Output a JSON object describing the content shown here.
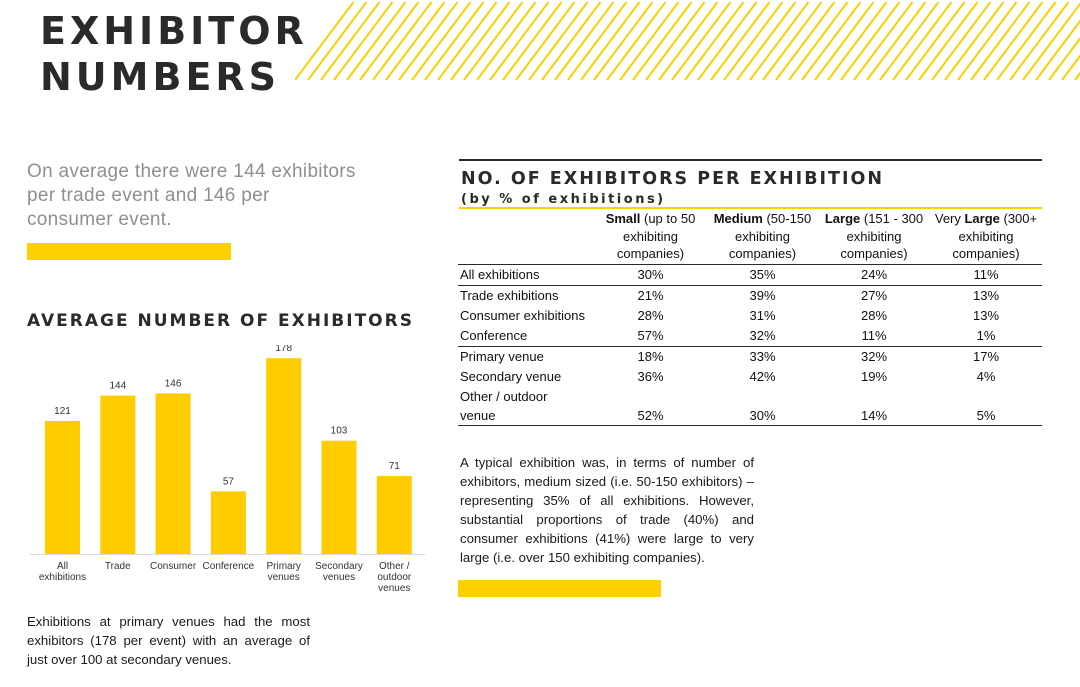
{
  "title": {
    "line1": "EXHIBITOR",
    "line2": "NUMBERS"
  },
  "intro": "On average there were 144 exhibitors per trade event and 146 per consumer event.",
  "colors": {
    "accent": "#ffd000",
    "text": "#2a2a2a",
    "intro_text": "#8f8f8f"
  },
  "chart_data": {
    "type": "bar",
    "title": "AVERAGE NUMBER OF EXHIBITORS",
    "categories": [
      [
        "All",
        "exhibitions"
      ],
      [
        "Trade"
      ],
      [
        "Consumer"
      ],
      [
        "Conference"
      ],
      [
        "Primary",
        "venues"
      ],
      [
        "Secondary",
        "venues"
      ],
      [
        "Other /",
        "outdoor",
        "venues"
      ]
    ],
    "values": [
      121,
      144,
      146,
      57,
      178,
      103,
      71
    ],
    "ylim": [
      0,
      190
    ],
    "xlabel": "",
    "ylabel": "",
    "grid": false,
    "color": "#ffcc00"
  },
  "bottom_note": "Exhibitions at primary venues had the most exhibitors (178 per event) with an average of just over 100 at secondary venues.",
  "table": {
    "heading": "NO. OF EXHIBITORS PER EXHIBITION",
    "subheading": "(by % of exhibitions)",
    "columns": [
      {
        "bold": "Small",
        "pre": "",
        "rest": " (up to 50 exhibiting companies)"
      },
      {
        "bold": "Medium",
        "pre": "",
        "rest": " (50-150 exhibiting companies)"
      },
      {
        "bold": "Large",
        "pre": "",
        "rest": " (151 - 300 exhibiting companies)"
      },
      {
        "bold": "Large",
        "pre": "Very ",
        "rest": " (300+ exhibiting companies)"
      }
    ],
    "rows": [
      {
        "label": "All exhibitions",
        "values": [
          "30%",
          "35%",
          "24%",
          "11%"
        ]
      },
      {
        "label": "Trade exhibitions",
        "values": [
          "21%",
          "39%",
          "27%",
          "13%"
        ]
      },
      {
        "label": "Consumer exhibitions",
        "values": [
          "28%",
          "31%",
          "28%",
          "13%"
        ]
      },
      {
        "label": "Conference",
        "values": [
          "57%",
          "32%",
          "11%",
          "1%"
        ]
      },
      {
        "label": "Primary venue",
        "values": [
          "18%",
          "33%",
          "32%",
          "17%"
        ]
      },
      {
        "label": "Secondary venue",
        "values": [
          "36%",
          "42%",
          "19%",
          "4%"
        ]
      },
      {
        "label": "Other / outdoor venue",
        "values": [
          "52%",
          "30%",
          "14%",
          "5%"
        ]
      }
    ]
  },
  "right_note": "A typical exhibition was, in terms of number of exhibitors, medium sized (i.e. 50-150 exhibitors) – representing 35% of all exhibitions. However, substantial proportions of trade (40%) and consumer exhibitions (41%) were large to very large (i.e. over 150 exhibiting companies)."
}
